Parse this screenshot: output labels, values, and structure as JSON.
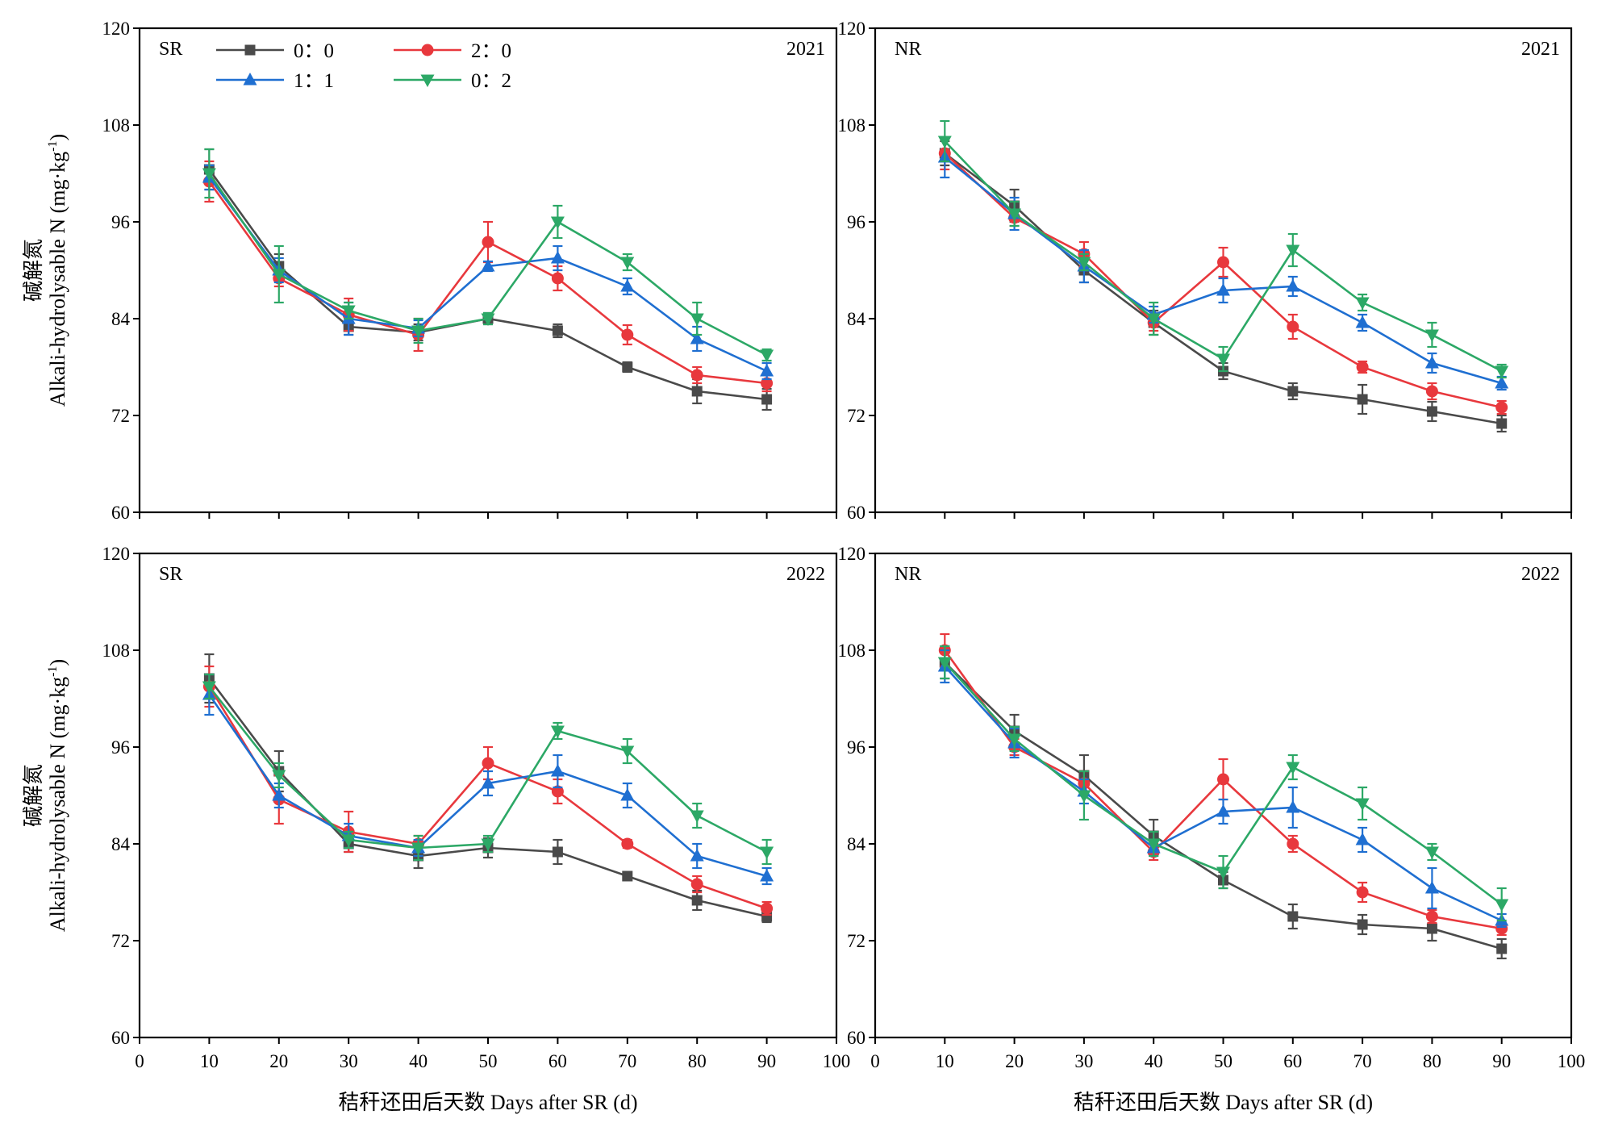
{
  "chart_data": {
    "type": "line",
    "x": [
      10,
      20,
      30,
      40,
      50,
      60,
      70,
      80,
      90
    ],
    "xlim": [
      0,
      100
    ],
    "xticks": [
      0,
      10,
      20,
      30,
      40,
      50,
      60,
      70,
      80,
      90,
      100
    ],
    "ylim": [
      60,
      120
    ],
    "yticks": [
      60,
      72,
      84,
      96,
      108,
      120
    ],
    "xlabel": "秸秆还田后天数 Days after SR (d)",
    "ylabel_cn": "碱解氮",
    "ylabel_en": "Alkali-hydrolysable N (mg·kg",
    "ylabel_sup": "-1",
    "ylabel_close": ")",
    "grid": false,
    "legend_position": "top-left, inside SR 2021 panel",
    "series_styles": [
      {
        "name": "0：0",
        "color": "#4a4a4a",
        "marker": "square"
      },
      {
        "name": "2：0",
        "color": "#e8383d",
        "marker": "circle"
      },
      {
        "name": "1：1",
        "color": "#1f6fd1",
        "marker": "triangle-up"
      },
      {
        "name": "0：2",
        "color": "#2ca866",
        "marker": "triangle-down"
      }
    ],
    "panels": [
      {
        "label": "SR",
        "year": "2021",
        "series": [
          {
            "name": "0：0",
            "values": [
              102.5,
              90.5,
              83.0,
              82.3,
              84.0,
              82.5,
              78.0,
              75.0,
              74.0
            ],
            "errors": [
              2.5,
              1.5,
              1.0,
              1.0,
              0.7,
              0.8,
              0.6,
              1.5,
              1.3
            ]
          },
          {
            "name": "2：0",
            "values": [
              101.0,
              89.0,
              84.5,
              82.0,
              93.5,
              89.0,
              82.0,
              77.0,
              76.0
            ],
            "errors": [
              2.5,
              1.0,
              2.0,
              2.0,
              2.5,
              1.5,
              1.2,
              1.0,
              1.0
            ]
          },
          {
            "name": "1：1",
            "values": [
              101.5,
              90.0,
              84.0,
              82.8,
              90.5,
              91.5,
              88.0,
              81.5,
              77.5
            ],
            "errors": [
              1.5,
              1.5,
              2.0,
              1.0,
              0.6,
              1.5,
              1.0,
              1.5,
              1.0
            ]
          },
          {
            "name": "0：2",
            "values": [
              102.0,
              89.5,
              85.0,
              82.5,
              84.0,
              96.0,
              91.0,
              84.0,
              79.5
            ],
            "errors": [
              3.0,
              3.5,
              1.0,
              1.5,
              0.7,
              2.0,
              1.0,
              2.0,
              0.7
            ]
          }
        ]
      },
      {
        "label": "NR",
        "year": "2021",
        "series": [
          {
            "name": "0：0",
            "values": [
              104.5,
              98.0,
              90.0,
              83.5,
              77.5,
              75.0,
              74.0,
              72.5,
              71.0
            ],
            "errors": [
              1.5,
              2.0,
              1.5,
              1.5,
              1.0,
              1.0,
              1.8,
              1.2,
              1.0
            ]
          },
          {
            "name": "2：0",
            "values": [
              104.5,
              96.5,
              92.0,
              83.5,
              91.0,
              83.0,
              78.0,
              75.0,
              73.0
            ],
            "errors": [
              2.0,
              1.0,
              1.5,
              1.0,
              1.8,
              1.5,
              0.7,
              1.0,
              0.8
            ]
          },
          {
            "name": "1：1",
            "values": [
              104.0,
              97.0,
              90.5,
              84.5,
              87.5,
              88.0,
              83.5,
              78.5,
              76.0
            ],
            "errors": [
              2.5,
              2.0,
              2.0,
              1.0,
              1.5,
              1.2,
              1.0,
              1.2,
              0.8
            ]
          },
          {
            "name": "0：2",
            "values": [
              106.0,
              97.0,
              91.0,
              84.0,
              79.0,
              92.5,
              86.0,
              82.0,
              77.5
            ],
            "errors": [
              2.5,
              1.5,
              1.0,
              2.0,
              1.5,
              2.0,
              1.0,
              1.5,
              0.8
            ]
          }
        ]
      },
      {
        "label": "SR",
        "year": "2022",
        "series": [
          {
            "name": "0：0",
            "values": [
              104.5,
              93.0,
              84.0,
              82.5,
              83.5,
              83.0,
              80.0,
              77.0,
              75.0
            ],
            "errors": [
              3.0,
              2.5,
              1.0,
              1.5,
              1.2,
              1.5,
              0.4,
              1.2,
              0.7
            ]
          },
          {
            "name": "2：0",
            "values": [
              103.5,
              89.5,
              85.5,
              84.0,
              94.0,
              90.5,
              84.0,
              79.0,
              76.0
            ],
            "errors": [
              2.5,
              3.0,
              2.5,
              1.0,
              2.0,
              1.5,
              0.5,
              1.0,
              0.8
            ]
          },
          {
            "name": "1：1",
            "values": [
              102.5,
              90.0,
              85.0,
              83.5,
              91.5,
              93.0,
              90.0,
              82.5,
              80.0
            ],
            "errors": [
              2.5,
              1.5,
              1.5,
              1.0,
              1.5,
              2.0,
              1.5,
              1.5,
              1.0
            ]
          },
          {
            "name": "0：2",
            "values": [
              103.5,
              92.5,
              84.5,
              83.5,
              84.0,
              98.0,
              95.5,
              87.5,
              83.0
            ],
            "errors": [
              1.5,
              1.5,
              1.0,
              1.5,
              1.0,
              1.0,
              1.5,
              1.5,
              1.5
            ]
          }
        ]
      },
      {
        "label": "NR",
        "year": "2022",
        "series": [
          {
            "name": "0：0",
            "values": [
              106.5,
              98.0,
              92.5,
              85.0,
              79.5,
              75.0,
              74.0,
              73.5,
              71.0
            ],
            "errors": [
              2.0,
              2.0,
              2.5,
              2.0,
              1.0,
              1.5,
              1.2,
              1.5,
              1.2
            ]
          },
          {
            "name": "2：0",
            "values": [
              108.0,
              96.0,
              91.5,
              83.0,
              92.0,
              84.0,
              78.0,
              75.0,
              73.5
            ],
            "errors": [
              2.0,
              1.0,
              1.5,
              1.0,
              2.5,
              1.0,
              1.2,
              0.8,
              0.8
            ]
          },
          {
            "name": "1：1",
            "values": [
              106.0,
              96.5,
              90.5,
              83.5,
              88.0,
              88.5,
              84.5,
              78.5,
              74.5
            ],
            "errors": [
              2.0,
              1.8,
              1.5,
              1.0,
              1.5,
              2.5,
              1.5,
              2.5,
              0.8
            ]
          },
          {
            "name": "0：2",
            "values": [
              106.5,
              97.0,
              90.0,
              84.0,
              80.5,
              93.5,
              89.0,
              83.0,
              76.5
            ],
            "errors": [
              2.0,
              1.5,
              3.0,
              1.5,
              2.0,
              1.5,
              2.0,
              1.0,
              2.0
            ]
          }
        ]
      }
    ]
  }
}
